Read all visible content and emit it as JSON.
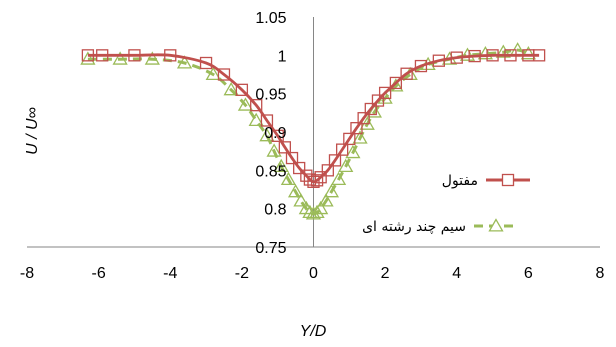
{
  "chart_data": {
    "type": "line",
    "title": "",
    "xlabel": "Y/D",
    "ylabel": "U / U∞",
    "xlim": [
      -8,
      8
    ],
    "ylim": [
      0.75,
      1.05
    ],
    "x_ticks": [
      "-8",
      "-6",
      "-4",
      "-2",
      "0",
      "2",
      "4",
      "6",
      "8"
    ],
    "y_ticks": [
      "0.75",
      "0.8",
      "0.85",
      "0.9",
      "0.95",
      "1",
      "1.05"
    ],
    "grid": false,
    "legend_position": "right",
    "series": [
      {
        "name": "مفتول",
        "color": "#c0504d",
        "marker": "square",
        "line_style": "solid",
        "points": [
          [
            -6.3,
            1.0
          ],
          [
            -5.9,
            1.0
          ],
          [
            -5.0,
            1.0
          ],
          [
            -4.0,
            1.0
          ],
          [
            -3.0,
            0.99
          ],
          [
            -2.5,
            0.975
          ],
          [
            -2.0,
            0.955
          ],
          [
            -1.6,
            0.935
          ],
          [
            -1.3,
            0.915
          ],
          [
            -1.0,
            0.895
          ],
          [
            -0.8,
            0.88
          ],
          [
            -0.6,
            0.866
          ],
          [
            -0.4,
            0.853
          ],
          [
            -0.2,
            0.843
          ],
          [
            -0.1,
            0.838
          ],
          [
            0.0,
            0.835
          ],
          [
            0.1,
            0.837
          ],
          [
            0.2,
            0.841
          ],
          [
            0.4,
            0.85
          ],
          [
            0.6,
            0.863
          ],
          [
            0.8,
            0.877
          ],
          [
            1.0,
            0.891
          ],
          [
            1.2,
            0.905
          ],
          [
            1.4,
            0.918
          ],
          [
            1.6,
            0.93
          ],
          [
            1.8,
            0.941
          ],
          [
            2.0,
            0.951
          ],
          [
            2.3,
            0.964
          ],
          [
            2.6,
            0.976
          ],
          [
            3.0,
            0.986
          ],
          [
            3.5,
            0.993
          ],
          [
            4.0,
            0.997
          ],
          [
            4.5,
            0.999
          ],
          [
            5.0,
            1.0
          ],
          [
            5.5,
            1.0
          ],
          [
            6.0,
            1.0
          ],
          [
            6.3,
            1.0
          ]
        ]
      },
      {
        "name": "سیم چند رشته ای",
        "color": "#9bbb59",
        "marker": "triangle",
        "line_style": "dashed",
        "points": [
          [
            -6.3,
            0.995
          ],
          [
            -5.4,
            0.995
          ],
          [
            -4.5,
            0.995
          ],
          [
            -3.6,
            0.99
          ],
          [
            -2.8,
            0.975
          ],
          [
            -2.3,
            0.955
          ],
          [
            -1.9,
            0.935
          ],
          [
            -1.6,
            0.915
          ],
          [
            -1.3,
            0.895
          ],
          [
            -1.1,
            0.875
          ],
          [
            -0.9,
            0.855
          ],
          [
            -0.7,
            0.838
          ],
          [
            -0.5,
            0.822
          ],
          [
            -0.35,
            0.81
          ],
          [
            -0.2,
            0.8
          ],
          [
            -0.1,
            0.795
          ],
          [
            0.0,
            0.793
          ],
          [
            0.1,
            0.795
          ],
          [
            0.2,
            0.8
          ],
          [
            0.35,
            0.81
          ],
          [
            0.5,
            0.822
          ],
          [
            0.7,
            0.838
          ],
          [
            0.9,
            0.855
          ],
          [
            1.1,
            0.873
          ],
          [
            1.3,
            0.892
          ],
          [
            1.5,
            0.91
          ],
          [
            1.7,
            0.926
          ],
          [
            2.0,
            0.944
          ],
          [
            2.3,
            0.96
          ],
          [
            2.7,
            0.975
          ],
          [
            3.2,
            0.988
          ],
          [
            3.8,
            0.995
          ],
          [
            4.3,
            1.0
          ],
          [
            4.8,
            1.002
          ],
          [
            5.3,
            1.004
          ],
          [
            5.7,
            1.007
          ],
          [
            6.0,
            1.002
          ]
        ]
      }
    ]
  }
}
